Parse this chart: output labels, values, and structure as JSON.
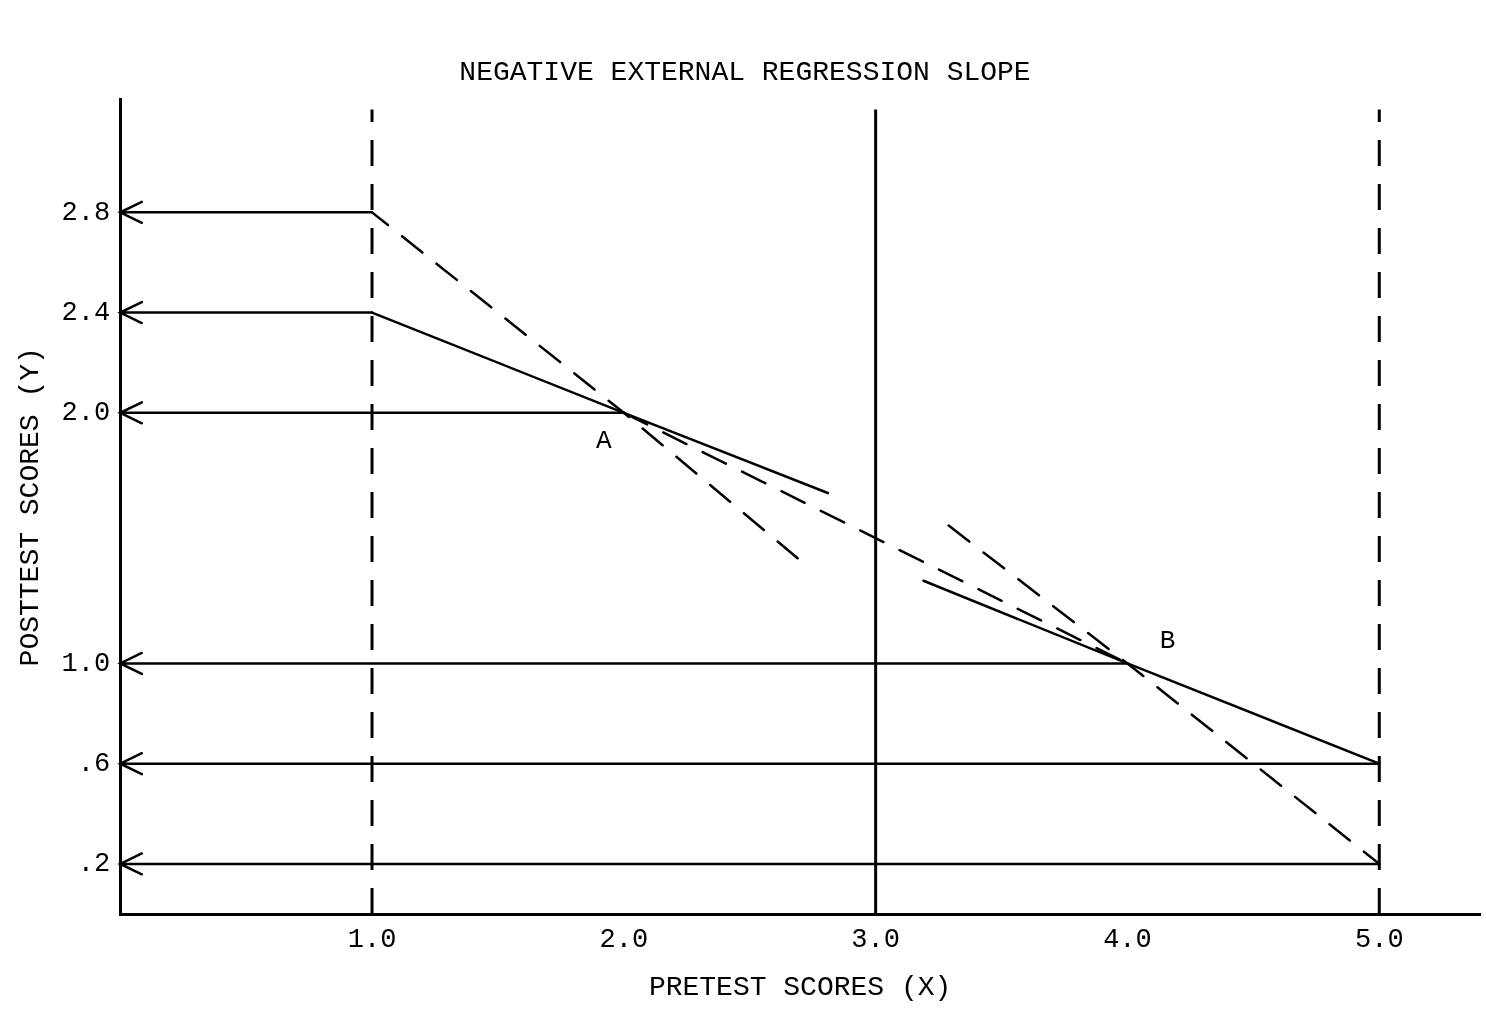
{
  "chart_data": {
    "type": "line",
    "title": "NEGATIVE EXTERNAL REGRESSION SLOPE",
    "xlabel": "PRETEST SCORES (X)",
    "ylabel": "POSTTEST SCORES (Y)",
    "xlim": [
      0,
      5.4
    ],
    "ylim": [
      0,
      3.25
    ],
    "xticks": [
      {
        "value": 1,
        "label": "1.0"
      },
      {
        "value": 2,
        "label": "2.0"
      },
      {
        "value": 3,
        "label": "3.0"
      },
      {
        "value": 4,
        "label": "4.0"
      },
      {
        "value": 5,
        "label": "5.0"
      }
    ],
    "yticks": [
      {
        "value": 0.2,
        "label": ".2"
      },
      {
        "value": 0.6,
        "label": ".6"
      },
      {
        "value": 1,
        "label": "1.0"
      },
      {
        "value": 2,
        "label": "2.0"
      },
      2.4,
      2.8
    ],
    "grid": "y",
    "legend": false,
    "series": [
      {
        "color": "#000000",
        "line_style": "solid",
        "x": [
          2.81,
          2,
          1
        ],
        "values": [
          1.68,
          2,
          2.4
        ]
      },
      {
        "color": "#000000",
        "line_style": "solid",
        "x": [
          3.19,
          4,
          5
        ],
        "values": [
          1.33,
          1,
          0.6
        ]
      },
      {
        "color": "#000000",
        "line_style": "dashed",
        "x": [
          2.69,
          2,
          1
        ],
        "values": [
          1.42,
          2,
          2.8
        ]
      },
      {
        "color": "#000000",
        "line_style": "dashed",
        "x": [
          3.29,
          4,
          5
        ],
        "values": [
          1.55,
          1,
          0.2
        ]
      },
      {
        "color": "#000000",
        "line_style": "dashed",
        "x": [
          2,
          4
        ],
        "values": [
          2,
          1
        ]
      }
    ],
    "ref_lines": [
      {
        "axis": "x",
        "value": 1,
        "line_style": "dashed"
      },
      {
        "axis": "x",
        "value": 3,
        "line_style": "solid"
      },
      {
        "axis": "x",
        "value": 5,
        "line_style": "dashed"
      }
    ],
    "annotations": [
      {
        "text": "A",
        "x": 2,
        "y": 2
      },
      {
        "text": "B",
        "x": 4,
        "y": 1
      }
    ]
  }
}
